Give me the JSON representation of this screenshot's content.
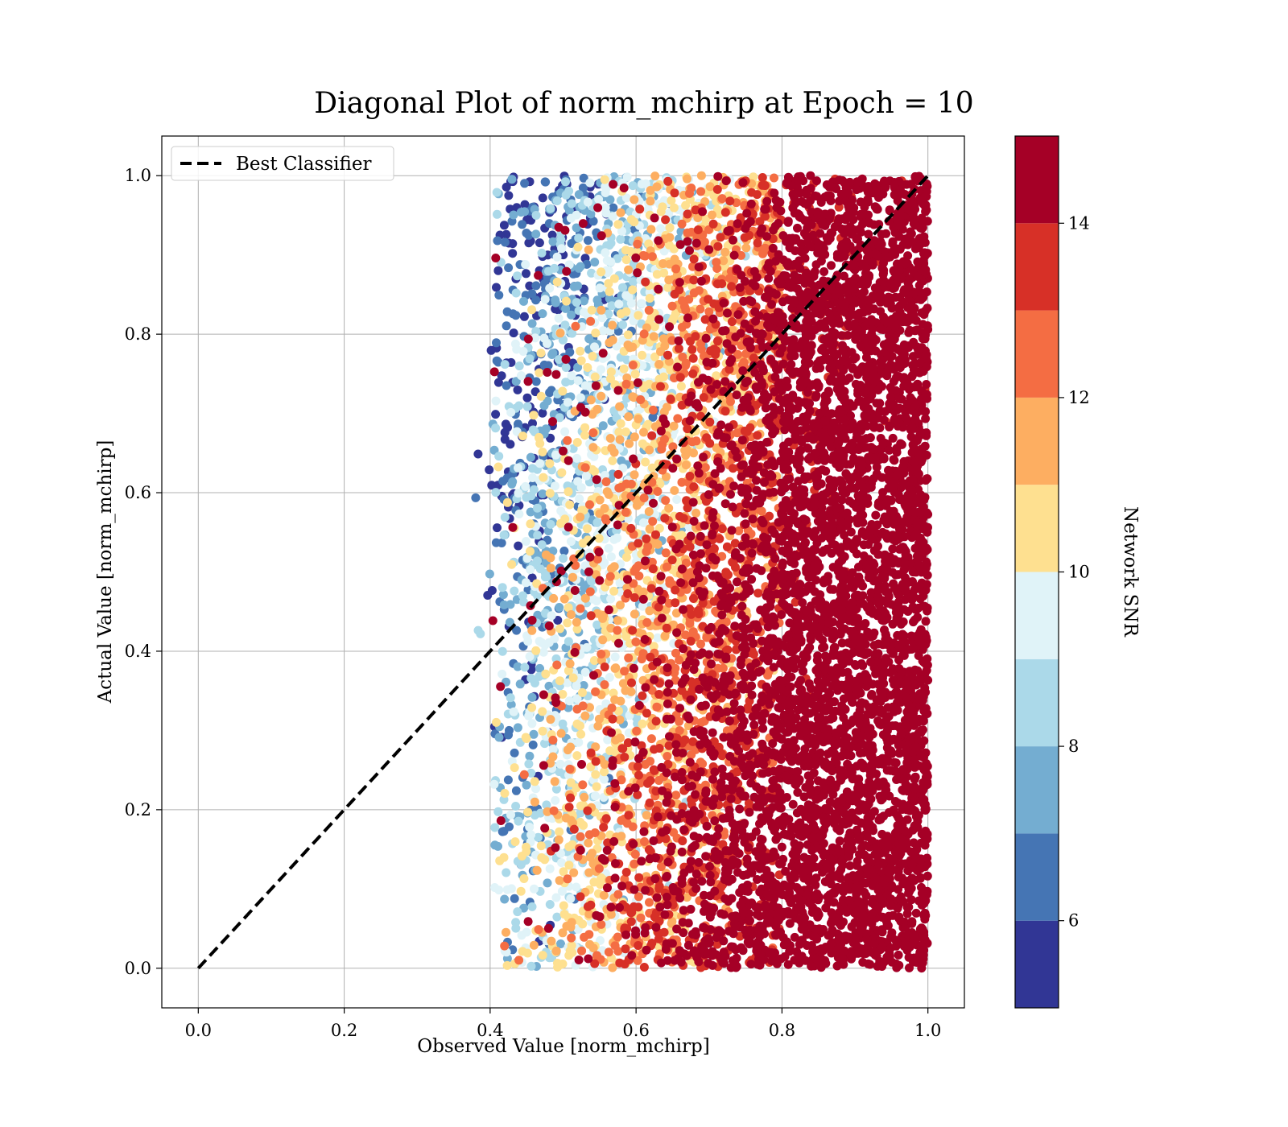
{
  "chart_data": {
    "type": "scatter",
    "title": "Diagonal Plot of norm_mchirp at Epoch = 10",
    "xlabel": "Observed Value [norm_mchirp]",
    "ylabel": "Actual Value [norm_mchirp]",
    "xlim": [
      -0.05,
      1.05
    ],
    "ylim": [
      -0.05,
      1.05
    ],
    "xticks": [
      0.0,
      0.2,
      0.4,
      0.6,
      0.8,
      1.0
    ],
    "yticks": [
      0.0,
      0.2,
      0.4,
      0.6,
      0.8,
      1.0
    ],
    "xtick_labels": [
      "0.0",
      "0.2",
      "0.4",
      "0.6",
      "0.8",
      "1.0"
    ],
    "ytick_labels": [
      "0.0",
      "0.2",
      "0.4",
      "0.6",
      "0.8",
      "1.0"
    ],
    "grid": true,
    "legend": {
      "placement": "upper-left",
      "entries": [
        {
          "label": "Best Classifier",
          "style": "dashed",
          "color": "#000000"
        }
      ]
    },
    "reference_line": {
      "label": "Best Classifier",
      "x": [
        0.0,
        1.0
      ],
      "y": [
        0.0,
        1.0
      ]
    },
    "scatter_extent": {
      "x_min": 0.37,
      "x_max": 1.0,
      "y_min": 0.0,
      "y_max": 1.0
    },
    "colorbar": {
      "label": "Network SNR",
      "range": [
        5,
        15
      ],
      "ticks": [
        6,
        8,
        10,
        12,
        14
      ],
      "tick_labels": [
        "6",
        "8",
        "10",
        "12",
        "14"
      ],
      "levels": [
        5,
        6,
        7,
        8,
        9,
        10,
        11,
        12,
        13,
        14,
        15
      ],
      "colors": [
        "#313695",
        "#4575b4",
        "#74add1",
        "#abd9e9",
        "#e0f3f8",
        "#fee090",
        "#fdae61",
        "#f46d43",
        "#d73027",
        "#a50026"
      ]
    },
    "snr_trend": "Network SNR increases with observed value: low SNR (blue) near observed 0.4, high SNR (dark red) above observed 0.8"
  }
}
